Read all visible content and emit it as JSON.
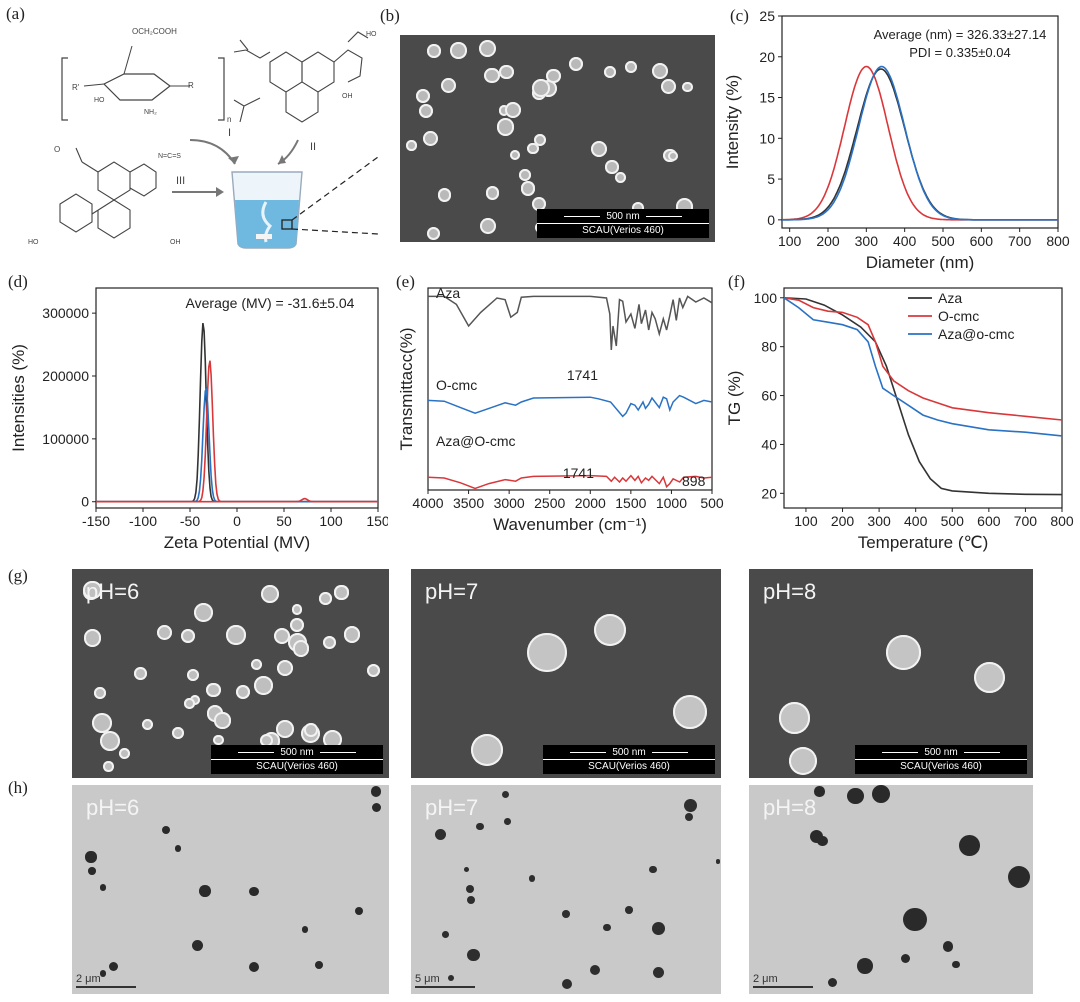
{
  "labels": {
    "a": "(a)",
    "b": "(b)",
    "c": "(c)",
    "d": "(d)",
    "e": "(e)",
    "f": "(f)",
    "g": "(g)",
    "h": "(h)"
  },
  "scheme": {
    "substituent": "OCH₂COOH",
    "nh2": "NH₂",
    "n": "n",
    "I": "I",
    "II": "II",
    "III": "III",
    "ho": "HO",
    "oh": "OH",
    "ncs": "N=C=S",
    "r": "R",
    "rp": "R'"
  },
  "sem_b": {
    "scale": "500 nm",
    "instrument": "SCAU(Verios 460)"
  },
  "sem_g": [
    {
      "ph": "pH=6",
      "scale": "500 nm",
      "instrument": "SCAU(Verios 460)"
    },
    {
      "ph": "pH=7",
      "scale": "500 nm",
      "instrument": "SCAU(Verios 460)"
    },
    {
      "ph": "pH=8",
      "scale": "500 nm",
      "instrument": "SCAU(Verios 460)"
    }
  ],
  "tem_h": [
    {
      "ph": "pH=6",
      "scale": "2 μm"
    },
    {
      "ph": "pH=7",
      "scale": "5 μm"
    },
    {
      "ph": "pH=8",
      "scale": "2 μm"
    }
  ],
  "colors": {
    "aza": "#333333",
    "ocmc": "#d9383b",
    "aza_ocmc": "#2a72c4"
  },
  "chart_data": [
    {
      "panel": "c",
      "type": "line",
      "xlabel": "Diameter (nm)",
      "ylabel": "Intensity (%)",
      "xlim": [
        80,
        800
      ],
      "ylim": [
        -1,
        25
      ],
      "xticks": [
        100,
        200,
        300,
        400,
        500,
        600,
        700,
        800
      ],
      "yticks": [
        0,
        5,
        10,
        15,
        20,
        25
      ],
      "annotations": [
        "Average (nm) = 326.33±27.14",
        "PDI = 0.335±0.04"
      ],
      "series": [
        {
          "color": "#d9383b",
          "peak_x": 300,
          "peak_y": 18.8,
          "width": 57
        },
        {
          "color": "#333333",
          "peak_x": 338,
          "peak_y": 18.5,
          "width": 62
        },
        {
          "color": "#2a72c4",
          "peak_x": 340,
          "peak_y": 18.8,
          "width": 60
        }
      ]
    },
    {
      "panel": "d",
      "type": "line",
      "xlabel": "Zeta Potential (MV)",
      "ylabel": "Intensities (%)",
      "xlim": [
        -150,
        150
      ],
      "ylim": [
        -10000,
        340000
      ],
      "xticks": [
        -150,
        -100,
        -50,
        0,
        50,
        100,
        150
      ],
      "yticks": [
        0,
        100000,
        200000,
        300000
      ],
      "annotations": [
        "Average (MV) = -31.6±5.04"
      ],
      "series": [
        {
          "color": "#333333",
          "peak_x": -36,
          "peak_y": 285000,
          "width": 3.2
        },
        {
          "color": "#d9383b",
          "peak_x": -29,
          "peak_y": 225000,
          "width": 3.2
        },
        {
          "color": "#2a72c4",
          "peak_x": -33,
          "peak_y": 181000,
          "width": 3.2
        },
        {
          "color": "#d9383b",
          "peak_x": 72,
          "peak_y": 5000,
          "width": 3
        }
      ]
    },
    {
      "panel": "e",
      "type": "line",
      "xlabel": "Wavenumber (cm⁻¹)",
      "ylabel": "Transmittacc(%)",
      "xlim": [
        4000,
        500
      ],
      "xticks": [
        4000,
        3500,
        3000,
        2500,
        2000,
        1500,
        1000,
        500
      ],
      "series": [
        {
          "name": "Aza",
          "color": "#555555",
          "x": [
            4000,
            3800,
            3650,
            3500,
            3350,
            3150,
            3050,
            2980,
            2900,
            2850,
            2700,
            2000,
            1800,
            1760,
            1741,
            1720,
            1680,
            1640,
            1600,
            1560,
            1500,
            1450,
            1400,
            1370,
            1320,
            1280,
            1240,
            1200,
            1150,
            1100,
            1060,
            1020,
            980,
            940,
            900,
            860,
            800,
            700,
            600,
            500
          ],
          "y": [
            92,
            92,
            82,
            55,
            72,
            90,
            88,
            66,
            72,
            91,
            92,
            92,
            90,
            70,
            25,
            55,
            30,
            88,
            86,
            60,
            70,
            52,
            82,
            58,
            75,
            50,
            72,
            64,
            45,
            64,
            50,
            68,
            88,
            62,
            90,
            78,
            92,
            85,
            90,
            84
          ]
        },
        {
          "name": "O-cmc",
          "color": "#2a72c4",
          "x": [
            4000,
            3800,
            3600,
            3420,
            3250,
            3050,
            2920,
            2850,
            2700,
            2000,
            1900,
            1750,
            1600,
            1560,
            1500,
            1450,
            1410,
            1350,
            1320,
            1280,
            1240,
            1150,
            1100,
            1060,
            1020,
            980,
            900,
            850,
            700,
            600,
            500
          ],
          "y": [
            62,
            61,
            53,
            46,
            52,
            59,
            56,
            60,
            65,
            66,
            64,
            60,
            42,
            46,
            58,
            56,
            50,
            60,
            52,
            57,
            65,
            53,
            66,
            64,
            50,
            60,
            68,
            66,
            58,
            62,
            60
          ]
        },
        {
          "name": "Aza@O-cmc",
          "color": "#d9383b",
          "x": [
            4000,
            3800,
            3600,
            3420,
            3250,
            3050,
            2920,
            2850,
            2700,
            2000,
            1800,
            1741,
            1700,
            1640,
            1600,
            1560,
            1500,
            1450,
            1410,
            1370,
            1320,
            1280,
            1240,
            1150,
            1100,
            1060,
            1020,
            980,
            898,
            850,
            700,
            600,
            500
          ],
          "y": [
            26,
            25,
            19,
            12,
            18,
            23,
            21,
            25,
            27,
            28,
            27,
            21,
            26,
            20,
            25,
            21,
            28,
            22,
            27,
            19,
            25,
            22,
            27,
            18,
            26,
            14,
            18,
            24,
            20,
            26,
            27,
            25,
            26
          ]
        }
      ],
      "annotations": [
        "Aza",
        "O-cmc",
        "Aza@O-cmc",
        "1741",
        "1741",
        "898"
      ]
    },
    {
      "panel": "f",
      "type": "line",
      "xlabel": "Temperature (℃)",
      "ylabel": "TG (%)",
      "xlim": [
        40,
        800
      ],
      "ylim": [
        14,
        104
      ],
      "xticks": [
        100,
        200,
        300,
        400,
        500,
        600,
        700,
        800
      ],
      "yticks": [
        20,
        40,
        60,
        80,
        100
      ],
      "legend": "top-right",
      "series": [
        {
          "name": "Aza",
          "color": "#333333",
          "x": [
            40,
            100,
            150,
            200,
            250,
            290,
            320,
            350,
            380,
            410,
            440,
            470,
            500,
            600,
            700,
            800
          ],
          "y": [
            100,
            99.5,
            97,
            93,
            88,
            82,
            72,
            58,
            44,
            33,
            26,
            22,
            21,
            20,
            19.6,
            19.5
          ]
        },
        {
          "name": "O-cmc",
          "color": "#d9383b",
          "x": [
            40,
            80,
            120,
            160,
            200,
            240,
            270,
            290,
            310,
            340,
            380,
            420,
            460,
            500,
            600,
            700,
            800
          ],
          "y": [
            100,
            99,
            96,
            94.5,
            94,
            92,
            89,
            82,
            72,
            66,
            62,
            59,
            57,
            55,
            53,
            51.5,
            50
          ]
        },
        {
          "name": "Aza@o-cmc",
          "color": "#2a72c4",
          "x": [
            40,
            80,
            120,
            160,
            200,
            240,
            270,
            290,
            310,
            340,
            380,
            420,
            460,
            500,
            600,
            700,
            800
          ],
          "y": [
            100,
            96,
            91,
            90,
            89,
            87,
            82,
            72,
            63,
            60,
            56,
            52,
            50,
            48.5,
            46,
            45,
            43.5
          ]
        }
      ]
    }
  ]
}
